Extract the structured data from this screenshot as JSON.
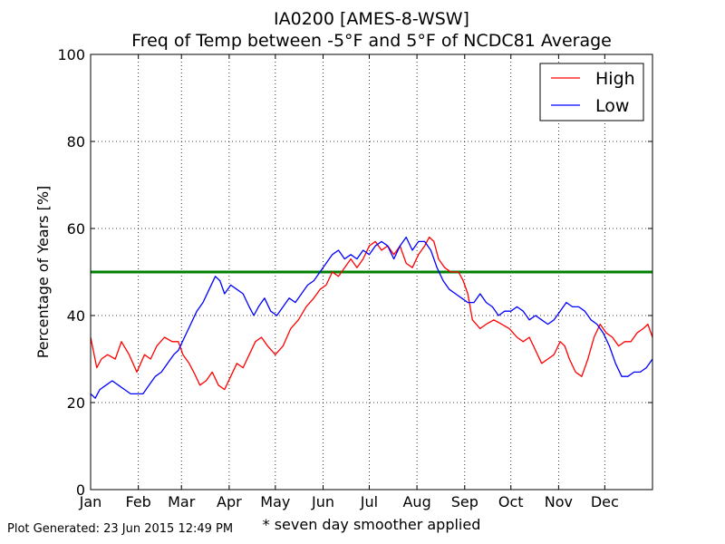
{
  "chart_data": {
    "type": "line",
    "title": "IA0200 [AMES-8-WSW]",
    "subtitle": "Freq of Temp between -5°F and 5°F of NCDC81 Average",
    "ylabel": "Percentage of Years [%]",
    "xlabel": "* seven day smoother applied",
    "ylim": [
      0,
      100
    ],
    "xlim": [
      1,
      366
    ],
    "y_ticks": [
      0,
      20,
      40,
      60,
      80,
      100
    ],
    "x_ticks": [
      {
        "day": 1,
        "label": "Jan"
      },
      {
        "day": 32,
        "label": "Feb"
      },
      {
        "day": 60,
        "label": "Mar"
      },
      {
        "day": 91,
        "label": "Apr"
      },
      {
        "day": 121,
        "label": "May"
      },
      {
        "day": 152,
        "label": "Jun"
      },
      {
        "day": 182,
        "label": "Jul"
      },
      {
        "day": 213,
        "label": "Aug"
      },
      {
        "day": 244,
        "label": "Sep"
      },
      {
        "day": 274,
        "label": "Oct"
      },
      {
        "day": 305,
        "label": "Nov"
      },
      {
        "day": 335,
        "label": "Dec"
      }
    ],
    "grid": true,
    "legend_position": "top-right",
    "reference_line": {
      "value": 50,
      "color": "#008000"
    },
    "series": [
      {
        "name": "High",
        "color": "#ff0000",
        "points": [
          [
            1,
            35
          ],
          [
            5,
            28
          ],
          [
            8,
            30
          ],
          [
            12,
            31
          ],
          [
            17,
            30
          ],
          [
            21,
            34
          ],
          [
            26,
            31
          ],
          [
            31,
            27
          ],
          [
            36,
            31
          ],
          [
            40,
            30
          ],
          [
            44,
            33
          ],
          [
            49,
            35
          ],
          [
            54,
            34
          ],
          [
            58,
            34
          ],
          [
            61,
            31
          ],
          [
            65,
            29
          ],
          [
            68,
            27
          ],
          [
            72,
            24
          ],
          [
            76,
            25
          ],
          [
            80,
            27
          ],
          [
            84,
            24
          ],
          [
            88,
            23
          ],
          [
            92,
            26
          ],
          [
            96,
            29
          ],
          [
            100,
            28
          ],
          [
            104,
            31
          ],
          [
            108,
            34
          ],
          [
            112,
            35
          ],
          [
            116,
            33
          ],
          [
            121,
            31
          ],
          [
            126,
            33
          ],
          [
            131,
            37
          ],
          [
            136,
            39
          ],
          [
            141,
            42
          ],
          [
            146,
            44
          ],
          [
            150,
            46
          ],
          [
            154,
            47
          ],
          [
            158,
            50
          ],
          [
            162,
            49
          ],
          [
            166,
            51
          ],
          [
            170,
            53
          ],
          [
            174,
            51
          ],
          [
            178,
            53
          ],
          [
            182,
            56
          ],
          [
            186,
            57
          ],
          [
            190,
            55
          ],
          [
            194,
            56
          ],
          [
            198,
            54
          ],
          [
            202,
            56
          ],
          [
            206,
            52
          ],
          [
            210,
            51
          ],
          [
            214,
            54
          ],
          [
            218,
            56
          ],
          [
            221,
            58
          ],
          [
            224,
            57
          ],
          [
            227,
            53
          ],
          [
            231,
            51
          ],
          [
            235,
            50
          ],
          [
            240,
            50
          ],
          [
            243,
            48
          ],
          [
            246,
            45
          ],
          [
            249,
            39
          ],
          [
            254,
            37
          ],
          [
            258,
            38
          ],
          [
            263,
            39
          ],
          [
            268,
            38
          ],
          [
            273,
            37
          ],
          [
            278,
            35
          ],
          [
            282,
            34
          ],
          [
            286,
            35
          ],
          [
            290,
            32
          ],
          [
            294,
            29
          ],
          [
            298,
            30
          ],
          [
            302,
            31
          ],
          [
            306,
            34
          ],
          [
            309,
            33
          ],
          [
            312,
            30
          ],
          [
            316,
            27
          ],
          [
            320,
            26
          ],
          [
            324,
            30
          ],
          [
            328,
            35
          ],
          [
            332,
            38
          ],
          [
            336,
            36
          ],
          [
            340,
            35
          ],
          [
            344,
            33
          ],
          [
            348,
            34
          ],
          [
            352,
            34
          ],
          [
            356,
            36
          ],
          [
            360,
            37
          ],
          [
            363,
            38
          ],
          [
            366,
            35
          ]
        ]
      },
      {
        "name": "Low",
        "color": "#0000ff",
        "points": [
          [
            1,
            22
          ],
          [
            4,
            21
          ],
          [
            7,
            23
          ],
          [
            11,
            24
          ],
          [
            15,
            25
          ],
          [
            19,
            24
          ],
          [
            23,
            23
          ],
          [
            27,
            22
          ],
          [
            31,
            22
          ],
          [
            35,
            22
          ],
          [
            39,
            24
          ],
          [
            43,
            26
          ],
          [
            47,
            27
          ],
          [
            51,
            29
          ],
          [
            55,
            31
          ],
          [
            58,
            32
          ],
          [
            62,
            35
          ],
          [
            66,
            38
          ],
          [
            70,
            41
          ],
          [
            74,
            43
          ],
          [
            78,
            46
          ],
          [
            82,
            49
          ],
          [
            85,
            48
          ],
          [
            88,
            45
          ],
          [
            92,
            47
          ],
          [
            96,
            46
          ],
          [
            100,
            45
          ],
          [
            104,
            42
          ],
          [
            107,
            40
          ],
          [
            110,
            42
          ],
          [
            114,
            44
          ],
          [
            118,
            41
          ],
          [
            122,
            40
          ],
          [
            126,
            42
          ],
          [
            130,
            44
          ],
          [
            134,
            43
          ],
          [
            138,
            45
          ],
          [
            142,
            47
          ],
          [
            146,
            48
          ],
          [
            150,
            50
          ],
          [
            154,
            52
          ],
          [
            158,
            54
          ],
          [
            162,
            55
          ],
          [
            166,
            53
          ],
          [
            170,
            54
          ],
          [
            174,
            53
          ],
          [
            178,
            55
          ],
          [
            182,
            54
          ],
          [
            186,
            56
          ],
          [
            190,
            57
          ],
          [
            194,
            56
          ],
          [
            198,
            53
          ],
          [
            202,
            56
          ],
          [
            206,
            58
          ],
          [
            210,
            55
          ],
          [
            214,
            57
          ],
          [
            218,
            57
          ],
          [
            222,
            55
          ],
          [
            226,
            51
          ],
          [
            230,
            48
          ],
          [
            234,
            46
          ],
          [
            238,
            45
          ],
          [
            242,
            44
          ],
          [
            246,
            43
          ],
          [
            250,
            43
          ],
          [
            254,
            45
          ],
          [
            258,
            43
          ],
          [
            262,
            42
          ],
          [
            266,
            40
          ],
          [
            270,
            41
          ],
          [
            274,
            41
          ],
          [
            278,
            42
          ],
          [
            282,
            41
          ],
          [
            286,
            39
          ],
          [
            290,
            40
          ],
          [
            294,
            39
          ],
          [
            298,
            38
          ],
          [
            302,
            39
          ],
          [
            306,
            41
          ],
          [
            310,
            43
          ],
          [
            314,
            42
          ],
          [
            318,
            42
          ],
          [
            322,
            41
          ],
          [
            326,
            39
          ],
          [
            330,
            38
          ],
          [
            334,
            36
          ],
          [
            338,
            33
          ],
          [
            342,
            29
          ],
          [
            346,
            26
          ],
          [
            350,
            26
          ],
          [
            354,
            27
          ],
          [
            358,
            27
          ],
          [
            362,
            28
          ],
          [
            366,
            30
          ]
        ]
      }
    ]
  },
  "footer": {
    "generated": "Plot Generated: 23 Jun 2015 12:49 PM"
  }
}
